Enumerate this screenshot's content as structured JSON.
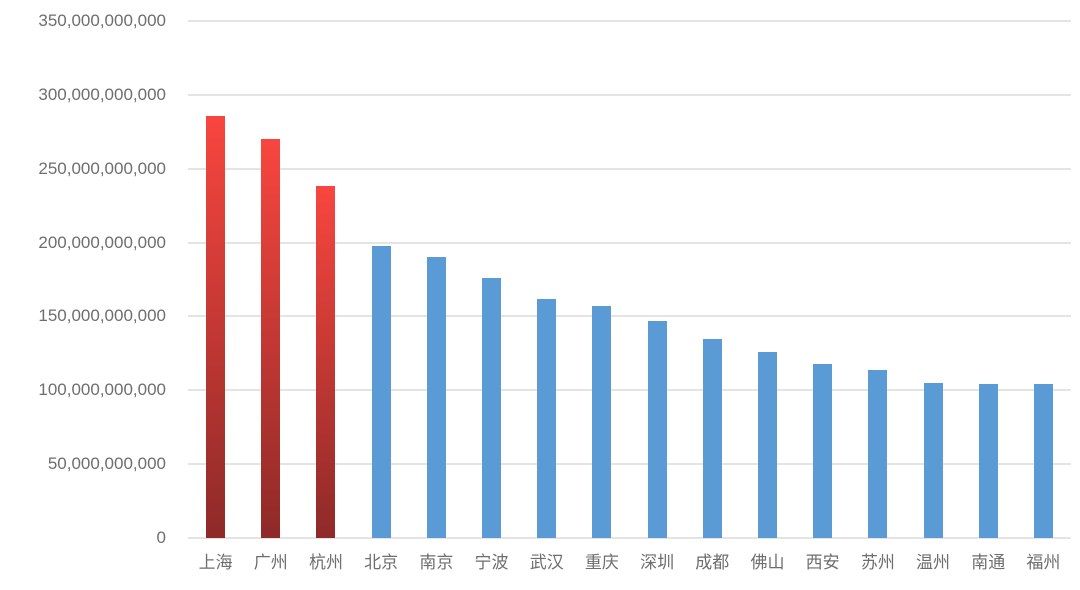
{
  "chart_data": {
    "type": "bar",
    "title": "",
    "xlabel": "",
    "ylabel": "",
    "categories": [
      "上海",
      "广州",
      "杭州",
      "北京",
      "南京",
      "宁波",
      "武汉",
      "重庆",
      "深圳",
      "成都",
      "佛山",
      "西安",
      "苏州",
      "温州",
      "南通",
      "福州"
    ],
    "values": [
      286000000000,
      270000000000,
      238000000000,
      198000000000,
      190000000000,
      176000000000,
      162000000000,
      157000000000,
      147000000000,
      135000000000,
      126000000000,
      118000000000,
      114000000000,
      105000000000,
      104000000000,
      104000000000
    ],
    "highlight_count": 3,
    "highlight_categories": [
      "上海",
      "广州",
      "杭州"
    ],
    "ylim": [
      0,
      350000000000
    ],
    "y_tick_step": 50000000000,
    "y_tick_labels": [
      "0",
      "50,000,000,000",
      "100,000,000,000",
      "150,000,000,000",
      "200,000,000,000",
      "250,000,000,000",
      "300,000,000,000",
      "350,000,000,000"
    ],
    "grid": true,
    "legend": false,
    "colors": {
      "background": "#ffffff",
      "bar_blue": "#5b9bd5",
      "bar_red_top": "#f8463f",
      "bar_red_bottom": "#8e2a28",
      "gridline": "#e4e4e4",
      "tick_text": "#6e6e6e"
    }
  }
}
